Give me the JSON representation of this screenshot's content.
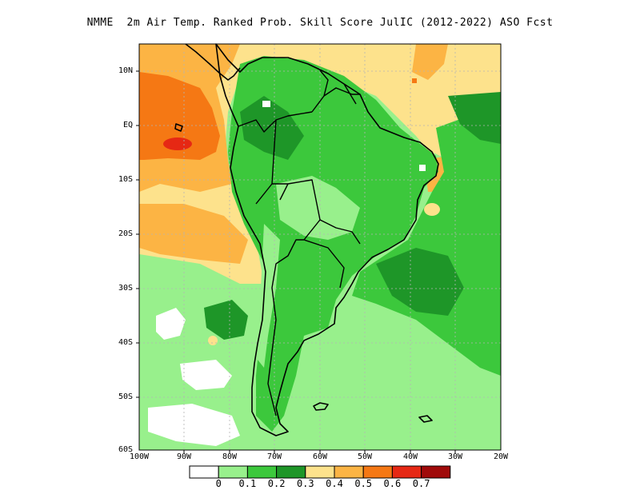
{
  "title": "NMME  2m Air Temp. Ranked Prob. Skill Score JulIC (2012-2022) ASO Fcst",
  "lat_labels": [
    "10N",
    "EQ",
    "10S",
    "20S",
    "30S",
    "40S",
    "50S",
    "60S"
  ],
  "lon_labels": [
    "100W",
    "90W",
    "80W",
    "70W",
    "60W",
    "50W",
    "40W",
    "30W",
    "20W"
  ],
  "colorbar": {
    "labels": [
      "0",
      "0.1",
      "0.2",
      "0.3",
      "0.4",
      "0.5",
      "0.6",
      "0.7"
    ],
    "colors": [
      "#ffffff",
      "#98f08c",
      "#3cc83c",
      "#1e9628",
      "#fde28c",
      "#fcb444",
      "#f57814",
      "#e62814",
      "#a00a0a"
    ]
  },
  "colors": {
    "light_green": "#98f08c",
    "green": "#3cc83c",
    "dark_green": "#1e9628",
    "light_yellow": "#fde28c",
    "orange": "#fcb444",
    "dark_orange": "#f57814",
    "red": "#e62814"
  }
}
